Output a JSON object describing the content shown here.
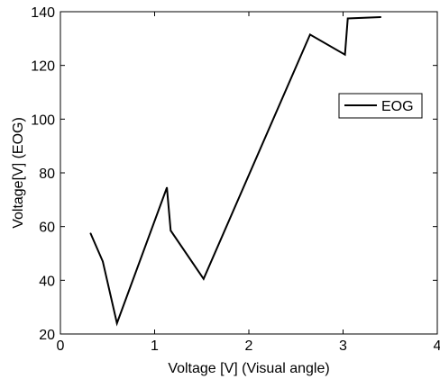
{
  "chart_data": {
    "type": "line",
    "xlabel": "Voltage [V] (Visual angle)",
    "ylabel": "Voltage[V] (EOG)",
    "xlim": [
      0,
      4
    ],
    "ylim": [
      20,
      140
    ],
    "xticks": [
      "0",
      "1",
      "2",
      "3",
      "4"
    ],
    "yticks": [
      "20",
      "40",
      "60",
      "80",
      "100",
      "120",
      "140"
    ],
    "grid": false,
    "legend_position": "right",
    "series": [
      {
        "name": "EOG",
        "color": "#000000",
        "x": [
          0.32,
          0.45,
          0.6,
          1.13,
          1.17,
          1.52,
          2.65,
          3.02,
          3.05,
          3.4
        ],
        "y": [
          57.5,
          47,
          24,
          74.5,
          58.5,
          40.5,
          131.5,
          124,
          137.5,
          138
        ]
      }
    ]
  }
}
